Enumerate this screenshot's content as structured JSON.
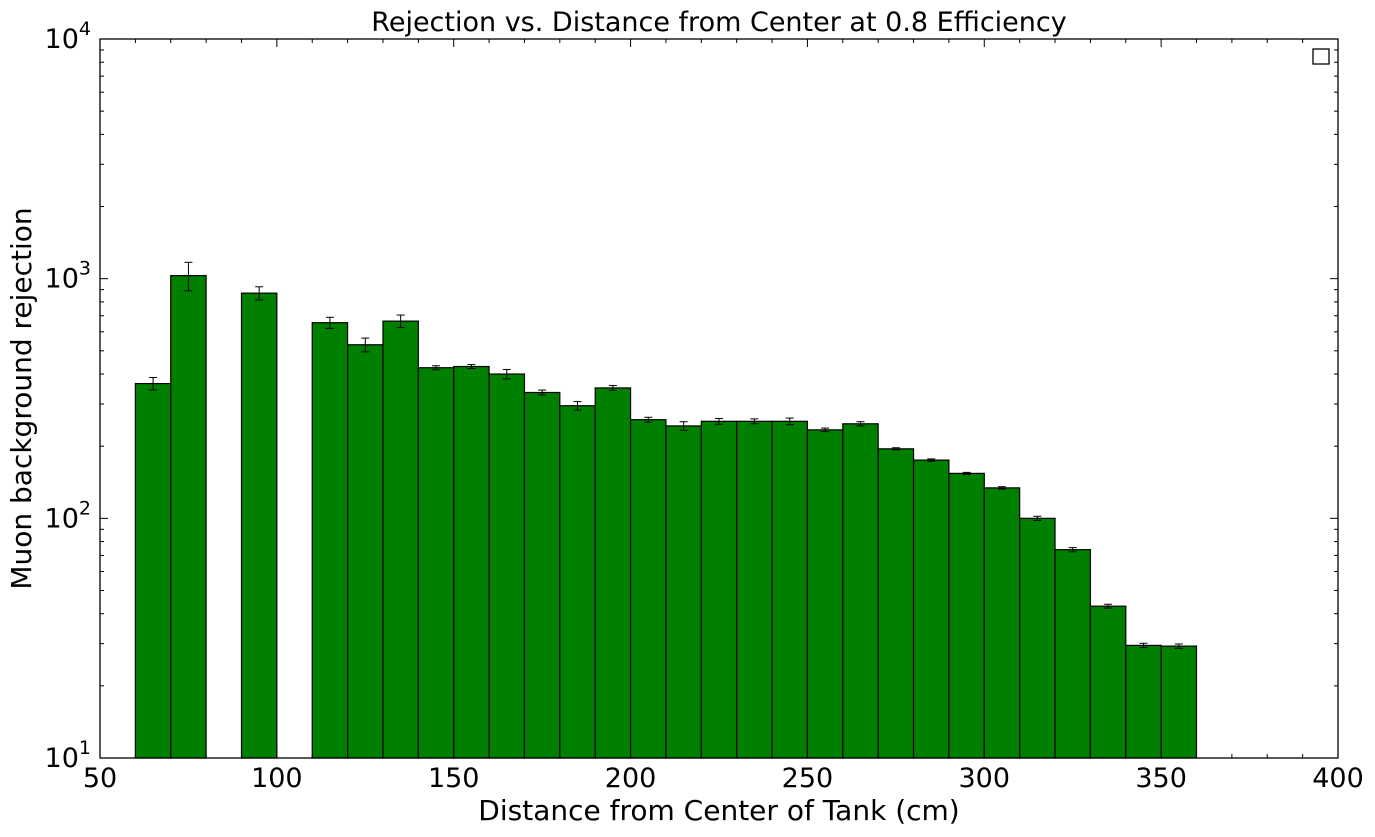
{
  "chart_data": {
    "type": "bar",
    "title": "Rejection vs. Distance from Center at 0.8 Efficiency",
    "xlabel": "Distance from Center of Tank (cm)",
    "ylabel": "Muon background rejection",
    "xlim": [
      50,
      400
    ],
    "ylim": [
      10,
      10000
    ],
    "yscale": "log",
    "bin_width": 10,
    "bar_color": "#008000",
    "legend": {
      "placement": "top-right",
      "entries": []
    },
    "x_ticks": [
      {
        "value": 50,
        "label": "50"
      },
      {
        "value": 100,
        "label": "100"
      },
      {
        "value": 150,
        "label": "150"
      },
      {
        "value": 200,
        "label": "200"
      },
      {
        "value": 250,
        "label": "250"
      },
      {
        "value": 300,
        "label": "300"
      },
      {
        "value": 350,
        "label": "350"
      },
      {
        "value": 400,
        "label": "400"
      }
    ],
    "y_ticks": [
      {
        "value": 10,
        "base": "10",
        "exp": "1"
      },
      {
        "value": 100,
        "base": "10",
        "exp": "2"
      },
      {
        "value": 1000,
        "base": "10",
        "exp": "3"
      },
      {
        "value": 10000,
        "base": "10",
        "exp": "4"
      }
    ],
    "bins": [
      {
        "x0": 60,
        "value": 365,
        "err": 22
      },
      {
        "x0": 70,
        "value": 1030,
        "err": 140
      },
      {
        "x0": 90,
        "value": 870,
        "err": 55
      },
      {
        "x0": 110,
        "value": 655,
        "err": 35
      },
      {
        "x0": 120,
        "value": 530,
        "err": 35
      },
      {
        "x0": 130,
        "value": 665,
        "err": 40
      },
      {
        "x0": 140,
        "value": 425,
        "err": 8
      },
      {
        "x0": 150,
        "value": 430,
        "err": 8
      },
      {
        "x0": 160,
        "value": 400,
        "err": 18
      },
      {
        "x0": 170,
        "value": 335,
        "err": 8
      },
      {
        "x0": 180,
        "value": 295,
        "err": 12
      },
      {
        "x0": 190,
        "value": 350,
        "err": 8
      },
      {
        "x0": 200,
        "value": 258,
        "err": 6
      },
      {
        "x0": 210,
        "value": 243,
        "err": 10
      },
      {
        "x0": 220,
        "value": 254,
        "err": 7
      },
      {
        "x0": 230,
        "value": 254,
        "err": 6
      },
      {
        "x0": 240,
        "value": 254,
        "err": 8
      },
      {
        "x0": 250,
        "value": 234,
        "err": 4
      },
      {
        "x0": 260,
        "value": 248,
        "err": 5
      },
      {
        "x0": 270,
        "value": 195,
        "err": 2
      },
      {
        "x0": 280,
        "value": 175,
        "err": 2
      },
      {
        "x0": 290,
        "value": 154,
        "err": 1.5
      },
      {
        "x0": 300,
        "value": 134,
        "err": 1.5
      },
      {
        "x0": 310,
        "value": 100,
        "err": 2
      },
      {
        "x0": 320,
        "value": 74,
        "err": 1.5
      },
      {
        "x0": 330,
        "value": 43,
        "err": 0.8
      },
      {
        "x0": 340,
        "value": 29.5,
        "err": 0.6
      },
      {
        "x0": 350,
        "value": 29.3,
        "err": 0.6
      }
    ]
  }
}
